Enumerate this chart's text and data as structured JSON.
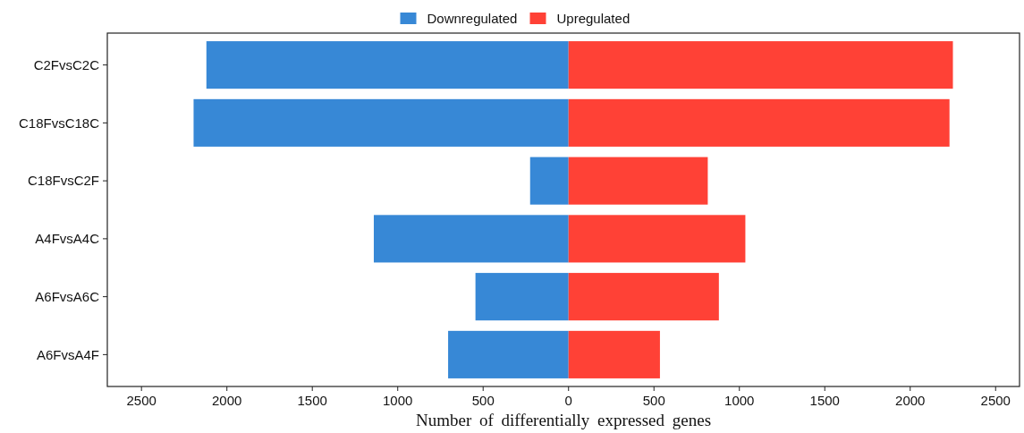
{
  "chart_data": {
    "type": "bar",
    "orientation": "horizontal",
    "stacked": true,
    "xlabel": "Number of differentially expressed genes",
    "categories": [
      "C2FvsC2C",
      "C18FvsC18C",
      "C18FvsC2F",
      "A4FvsA4C",
      "A6FvsA6C",
      "A6FvsA4F"
    ],
    "series": [
      {
        "name": "Downregulated",
        "color": "#3788d6",
        "values": [
          -2120,
          -2195,
          -225,
          -1140,
          -545,
          -705
        ]
      },
      {
        "name": "Upregulated",
        "color": "#ff4136",
        "values": [
          2250,
          2230,
          815,
          1035,
          880,
          535
        ]
      }
    ],
    "xlim": [
      -2700,
      2640
    ],
    "xticks": [
      {
        "value": -2500,
        "label": "2500"
      },
      {
        "value": -2000,
        "label": "2000"
      },
      {
        "value": -1500,
        "label": "1500"
      },
      {
        "value": -1000,
        "label": "1000"
      },
      {
        "value": -500,
        "label": "500"
      },
      0,
      500,
      1000,
      1500,
      2000,
      2500
    ],
    "legend": "top",
    "grid": false
  }
}
